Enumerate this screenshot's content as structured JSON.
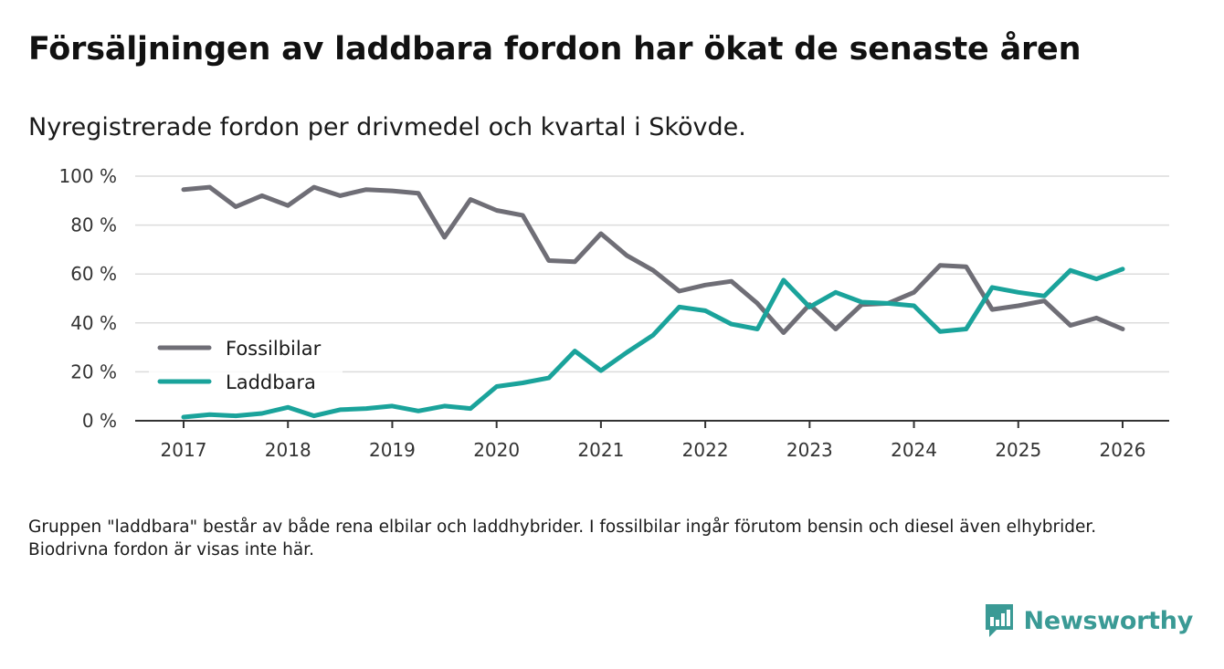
{
  "title": "Försäljningen av laddbara fordon har ökat de senaste åren",
  "subtitle": "Nyregistrerade fordon per drivmedel och kvartal i Skövde.",
  "footnote": "Gruppen \"laddbara\" består av både rena elbilar och laddhybrider. I fossilbilar ingår förutom bensin och diesel även elhybrider. Biodrivna fordon är visas inte här.",
  "brand": {
    "name": "Newsworthy",
    "icon": "bar-chart-speech-bubble-icon",
    "color": "#3a9a95"
  },
  "chart_data": {
    "type": "line",
    "title": "Försäljningen av laddbara fordon har ökat de senaste åren",
    "xlabel": "",
    "ylabel": "",
    "ylim": [
      0,
      100
    ],
    "xlim": [
      2017,
      2026
    ],
    "grid": true,
    "legend_position": "lower-left",
    "y_ticks": [
      0,
      20,
      40,
      60,
      80,
      100
    ],
    "y_tick_labels": [
      "0 %",
      "20 %",
      "40 %",
      "60 %",
      "80 %",
      "100 %"
    ],
    "x_ticks": [
      2017,
      2018,
      2019,
      2020,
      2021,
      2022,
      2023,
      2024,
      2025,
      2026
    ],
    "x_tick_labels": [
      "2017",
      "2018",
      "2019",
      "2020",
      "2021",
      "2022",
      "2023",
      "2024",
      "2025",
      "2026"
    ],
    "x": [
      2017,
      2017.25,
      2017.5,
      2017.75,
      2018,
      2018.25,
      2018.5,
      2018.75,
      2019,
      2019.25,
      2019.5,
      2019.75,
      2020,
      2020.25,
      2020.5,
      2020.75,
      2021,
      2021.25,
      2021.5,
      2021.75,
      2022,
      2022.25,
      2022.5,
      2022.75,
      2023,
      2023.25,
      2023.5,
      2023.75,
      2024,
      2024.25,
      2024.5,
      2024.75,
      2025,
      2025.25,
      2025.5,
      2025.75,
      2026
    ],
    "series": [
      {
        "name": "Fossilbilar",
        "color": "#6f6e76",
        "values": [
          94.5,
          95.5,
          87.5,
          92,
          88,
          95.5,
          92,
          94.5,
          94,
          93,
          75,
          90.5,
          86,
          84,
          65.5,
          65,
          76.5,
          67.5,
          61.5,
          53,
          55.5,
          57,
          48,
          36,
          47.5,
          37.5,
          47.5,
          48,
          52.5,
          63.5,
          63,
          45.5,
          47,
          49,
          39,
          42,
          37.5
        ]
      },
      {
        "name": "Laddbara",
        "color": "#1aa39b",
        "values": [
          1.5,
          2.5,
          2,
          3,
          5.5,
          2,
          4.5,
          5,
          6,
          4,
          6,
          5,
          14,
          15.5,
          17.5,
          28.5,
          20.5,
          28,
          35,
          46.5,
          45,
          39.5,
          37.5,
          57.5,
          46.5,
          52.5,
          48.5,
          48,
          47,
          36.5,
          37.5,
          54.5,
          52.5,
          51,
          61.5,
          58,
          62
        ]
      }
    ]
  }
}
